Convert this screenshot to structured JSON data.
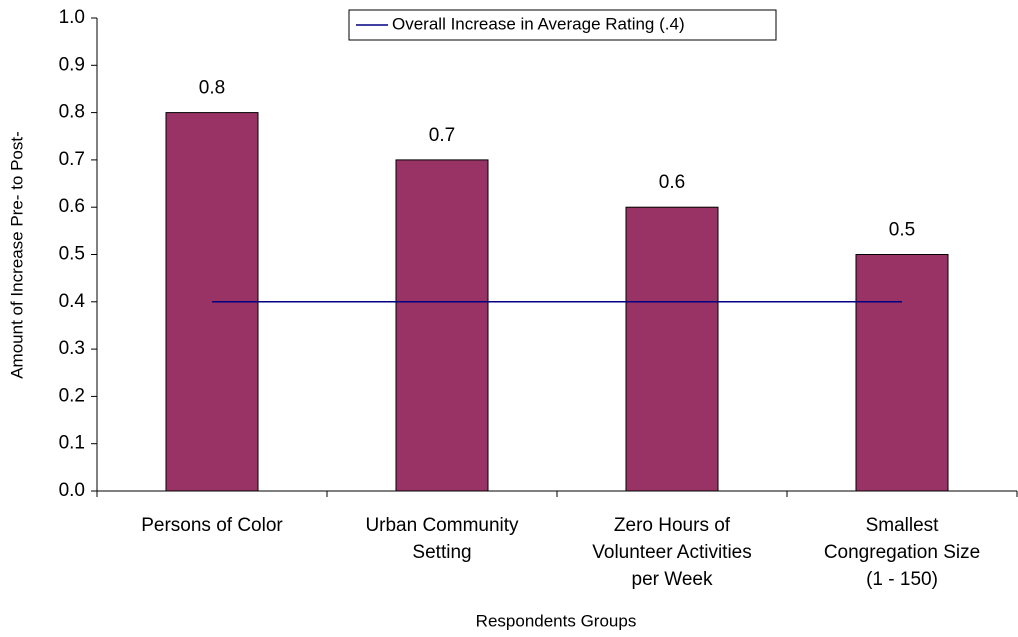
{
  "chart_data": {
    "type": "bar",
    "x_label": "Respondents Groups",
    "y_label": "Amount of Increase Pre- to Post-",
    "categories": [
      [
        "Persons of Color"
      ],
      [
        "Urban Community",
        "Setting"
      ],
      [
        "Zero Hours of",
        "Volunteer Activities",
        "per Week"
      ],
      [
        "Smallest",
        "Congregation Size",
        "(1 - 150)"
      ]
    ],
    "series": [
      {
        "type": "bar",
        "color": "#993366",
        "values": [
          0.8,
          0.7,
          0.6,
          0.5
        ]
      },
      {
        "type": "line",
        "name": "Overall Increase in Average Rating (.4)",
        "color": "#000080",
        "values": [
          0.4,
          0.4,
          0.4,
          0.4
        ]
      }
    ],
    "ylim": [
      0,
      1
    ],
    "yticks": [
      {
        "value": 0,
        "label": "0.0"
      },
      0.1,
      0.2,
      0.3,
      0.4,
      0.5,
      0.6,
      0.7,
      0.8,
      0.9,
      {
        "value": 1,
        "label": "1.0"
      }
    ],
    "legend": "top"
  }
}
